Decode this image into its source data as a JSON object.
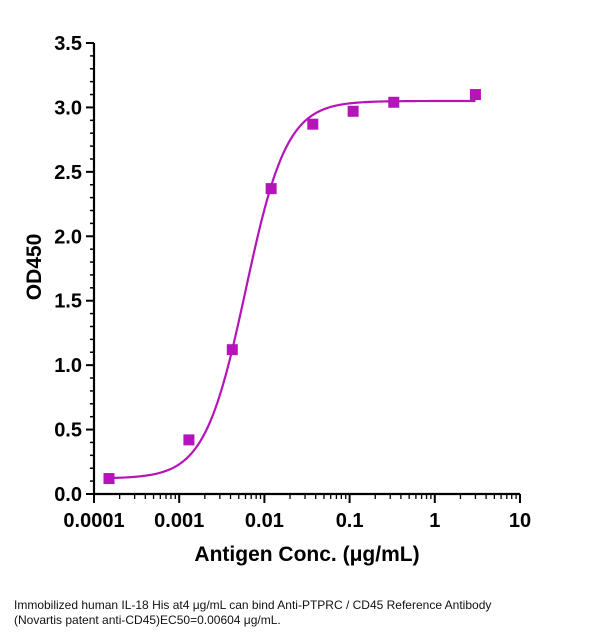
{
  "chart_data": {
    "type": "scatter",
    "xlabel": "Antigen Conc. (μg/mL)",
    "ylabel": "OD450",
    "xscale": "log",
    "xlim": [
      0.0001,
      10
    ],
    "ylim": [
      0,
      3.5
    ],
    "x_ticks": [
      "0.0001",
      "0.001",
      "0.01",
      "0.1",
      "1",
      "10"
    ],
    "y_ticks": [
      "0.0",
      "0.5",
      "1.0",
      "1.5",
      "2.0",
      "2.5",
      "3.0",
      "3.5"
    ],
    "color": "#b514b8",
    "series": [
      {
        "x": [
          0.00015,
          0.0013,
          0.0042,
          0.012,
          0.037,
          0.11,
          0.33,
          3.0
        ],
        "y": [
          0.12,
          0.42,
          1.12,
          2.37,
          2.87,
          2.97,
          3.04,
          3.1
        ]
      }
    ],
    "fit": {
      "type": "4PL",
      "bottom": 0.12,
      "top": 3.05,
      "ec50": 0.00604,
      "hill": 1.8
    }
  },
  "caption": {
    "line1": "Immobilized human IL-18 His at4 μg/mL can bind  Anti-PTPRC / CD45 Reference Antibody",
    "line2": "(Novartis patent anti-CD45)\u001bEC50=0.00604 μg/mL."
  }
}
